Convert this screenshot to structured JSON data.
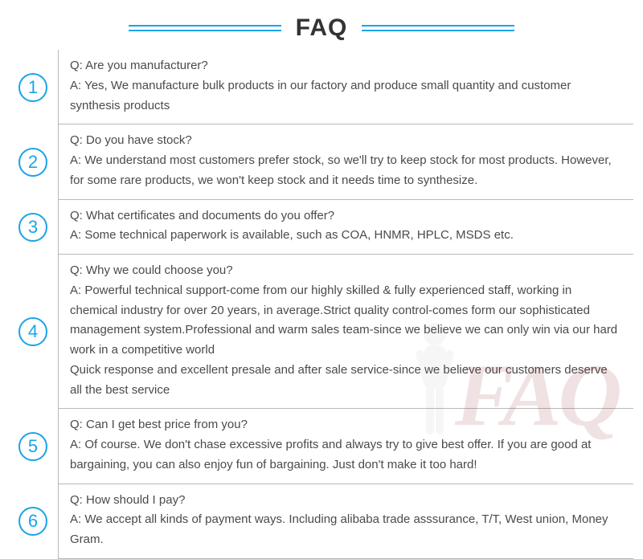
{
  "header": {
    "title": "FAQ",
    "accent_color": "#1aa3e8",
    "title_color": "#333333",
    "title_fontsize": 30
  },
  "text_color": "#4a4a4a",
  "border_color": "#b8b8b8",
  "background_color": "#ffffff",
  "body_fontsize": 15,
  "watermark": {
    "text": "FAQ",
    "color": "#8a1a1a",
    "opacity": 0.12
  },
  "items": [
    {
      "num": "1",
      "q": "Q: Are you manufacturer?",
      "a": "A: Yes, We manufacture bulk products in our factory and produce small quantity and customer synthesis products"
    },
    {
      "num": "2",
      "q": "Q: Do you have stock?",
      "a": "A: We understand most customers prefer stock, so we'll try to keep stock for most products. However, for some rare products, we won't keep stock and it needs time to synthesize."
    },
    {
      "num": "3",
      "q": "Q: What certificates and documents do you offer?",
      "a": "A: Some technical paperwork is available, such as COA, HNMR, HPLC, MSDS etc."
    },
    {
      "num": "4",
      "q": "Q: Why we could choose you?",
      "a": "A: Powerful technical support-come from our highly skilled & fully experienced staff, working in chemical industry for over 20 years, in average.Strict quality control-comes form our sophisticated management system.Professional and warm sales team-since we believe we can only win via our hard work in a competitive world\nQuick response and excellent presale and after sale service-since we believe our customers deserve all the best service"
    },
    {
      "num": "5",
      "q": "Q: Can I get best price from you?",
      "a": "A: Of course. We don't chase excessive profits and always try to give best offer. If you are good at bargaining, you can also enjoy fun of bargaining. Just don't make it too hard!"
    },
    {
      "num": "6",
      "q": "Q: How should I pay?",
      "a": "A: We accept all kinds of payment ways. Including alibaba trade asssurance, T/T, West union, Money Gram."
    }
  ]
}
